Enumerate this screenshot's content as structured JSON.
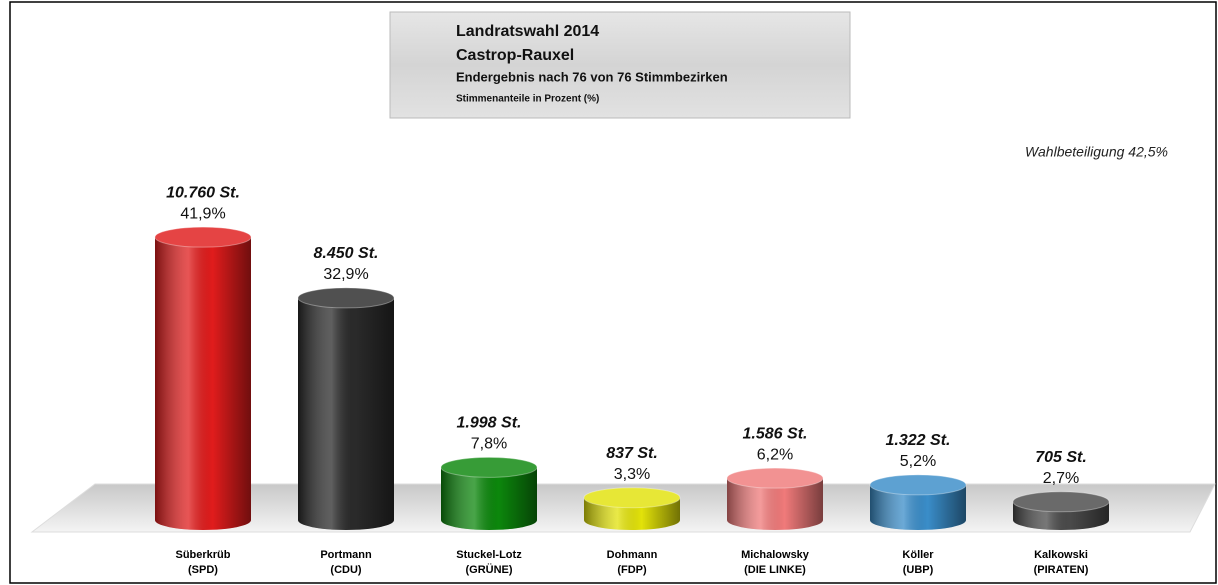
{
  "chart_data": {
    "type": "bar",
    "title": [
      "Landratswahl 2014",
      "Castrop-Rauxel",
      "Endergebnis nach 76 von 76 Stimmbezirken",
      "Stimmenanteile in Prozent (%)"
    ],
    "annotation": "Wahlbeteiligung 42,5%",
    "categories": [
      [
        "Süberkrüb",
        "(SPD)"
      ],
      [
        "Portmann",
        "(CDU)"
      ],
      [
        "Stuckel-Lotz",
        "(GRÜNE)"
      ],
      [
        "Dohmann",
        "(FDP)"
      ],
      [
        "Michalowsky",
        "(DIE LINKE)"
      ],
      [
        "Köller",
        "(UBP)"
      ],
      [
        "Kalkowski",
        "(PIRATEN)"
      ]
    ],
    "values": [
      41.9,
      32.9,
      7.8,
      3.3,
      6.2,
      5.2,
      2.7
    ],
    "value_labels": [
      "41,9%",
      "32,9%",
      "7,8%",
      "3,3%",
      "6,2%",
      "5,2%",
      "2,7%"
    ],
    "votes": [
      10760,
      8450,
      1998,
      837,
      1586,
      1322,
      705
    ],
    "vote_labels": [
      "10.760 St.",
      "8.450 St.",
      "1.998 St.",
      "837 St.",
      "1.586 St.",
      "1.322 St.",
      "705 St."
    ],
    "colors": [
      "#e01c1c",
      "#2a2a2a",
      "#0c870c",
      "#e2e20a",
      "#f07a7a",
      "#3a8dc9",
      "#4a4a4a"
    ]
  }
}
